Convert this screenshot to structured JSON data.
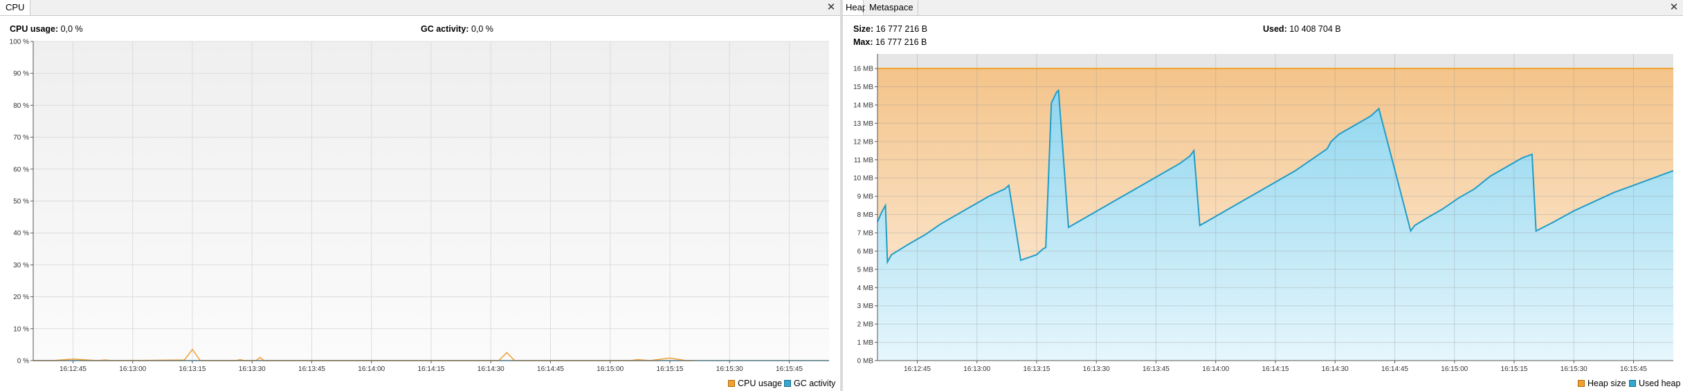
{
  "cpu_panel": {
    "tab": "CPU",
    "close_icon": "close-icon",
    "stats": {
      "cpu_label": "CPU usage:",
      "cpu_value": "0,0 %",
      "gc_label": "GC activity:",
      "gc_value": "0,0 %"
    },
    "legend": [
      "CPU usage",
      "GC activity"
    ],
    "colors": {
      "cpu": "#f0a030",
      "gc": "#35a8d0"
    }
  },
  "heap_panel": {
    "tabs": [
      "Heap",
      "Metaspace"
    ],
    "close_icon": "close-icon",
    "stats": {
      "size_label": "Size:",
      "size_value": "16 777 216 B",
      "used_label": "Used:",
      "used_value": "10 408 704 B",
      "max_label": "Max:",
      "max_value": "16 777 216 B"
    },
    "legend": [
      "Heap size",
      "Used heap"
    ],
    "colors": {
      "size": "#f0a030",
      "used": "#35a8d0"
    }
  },
  "chart_data": [
    {
      "type": "line",
      "title": "CPU",
      "xlabel": "",
      "ylabel": "",
      "ylim": [
        0,
        100
      ],
      "xlim": [
        "16:12:35",
        "16:15:55"
      ],
      "y_ticks": [
        "0 %",
        "10 %",
        "20 %",
        "30 %",
        "40 %",
        "50 %",
        "60 %",
        "70 %",
        "80 %",
        "90 %",
        "100 %"
      ],
      "x_ticks": [
        "16:12:45",
        "16:13:00",
        "16:13:15",
        "16:13:30",
        "16:13:45",
        "16:14:00",
        "16:14:15",
        "16:14:30",
        "16:14:45",
        "16:15:00",
        "16:15:15",
        "16:15:30",
        "16:15:45"
      ],
      "series": [
        {
          "name": "CPU usage",
          "x": [
            0,
            5,
            10,
            16,
            18,
            20,
            23,
            38,
            40,
            42,
            50,
            51,
            52,
            53,
            54,
            56,
            57,
            58,
            59,
            60,
            117,
            119,
            121,
            125,
            150,
            152,
            155,
            160,
            164,
            166
          ],
          "y": [
            0,
            0,
            0.5,
            0,
            0.2,
            0,
            0,
            0.2,
            3.5,
            0,
            0,
            0,
            0.3,
            0,
            0,
            0,
            1,
            0,
            0,
            0,
            0,
            2.5,
            0,
            0,
            0,
            0.3,
            0,
            0.8,
            0,
            0
          ]
        },
        {
          "name": "GC activity",
          "x": [
            0,
            200
          ],
          "y": [
            0,
            0
          ]
        }
      ]
    },
    {
      "type": "area",
      "title": "Heap",
      "xlabel": "",
      "ylabel": "",
      "ylim": [
        0,
        16.8
      ],
      "xlim": [
        "16:12:35",
        "16:15:55"
      ],
      "y_ticks": [
        "0 MB",
        "1 MB",
        "2 MB",
        "3 MB",
        "4 MB",
        "5 MB",
        "6 MB",
        "7 MB",
        "8 MB",
        "9 MB",
        "10 MB",
        "11 MB",
        "12 MB",
        "13 MB",
        "14 MB",
        "15 MB",
        "16 MB"
      ],
      "x_ticks": [
        "16:12:45",
        "16:13:00",
        "16:13:15",
        "16:13:30",
        "16:13:45",
        "16:14:00",
        "16:14:15",
        "16:14:30",
        "16:14:45",
        "16:15:00",
        "16:15:15",
        "16:15:30",
        "16:15:45"
      ],
      "series": [
        {
          "name": "Heap size",
          "x": [
            0,
            200
          ],
          "y": [
            16,
            16
          ]
        },
        {
          "name": "Used heap",
          "x": [
            0,
            1,
            2,
            2.5,
            3.5,
            5,
            8,
            12,
            16,
            20,
            24,
            28,
            32,
            33,
            36,
            40,
            41.5,
            42.3,
            43.7,
            45,
            45.5,
            48,
            52,
            56,
            60,
            64,
            68,
            72,
            76,
            78.5,
            79.5,
            81,
            85,
            89,
            93,
            97,
            101,
            105,
            109,
            113,
            114,
            116,
            120,
            124,
            126,
            134,
            135,
            138,
            142,
            146,
            150,
            154,
            158,
            162,
            164.5,
            165.5,
            170,
            175,
            180,
            185,
            190,
            195,
            200
          ],
          "y": [
            7.6,
            8.1,
            8.5,
            5.4,
            5.8,
            6.0,
            6.4,
            6.9,
            7.5,
            8.0,
            8.5,
            9.0,
            9.4,
            9.6,
            5.5,
            5.8,
            6.1,
            6.2,
            14.1,
            14.7,
            14.8,
            7.3,
            7.8,
            8.3,
            8.8,
            9.3,
            9.8,
            10.3,
            10.8,
            11.2,
            11.5,
            7.4,
            7.9,
            8.4,
            8.9,
            9.4,
            9.9,
            10.4,
            11.0,
            11.6,
            12.0,
            12.4,
            12.9,
            13.4,
            13.8,
            7.1,
            7.4,
            7.8,
            8.3,
            8.9,
            9.4,
            10.1,
            10.6,
            11.1,
            11.3,
            7.1,
            7.6,
            8.2,
            8.7,
            9.2,
            9.6,
            10.0,
            10.4
          ]
        }
      ]
    }
  ]
}
